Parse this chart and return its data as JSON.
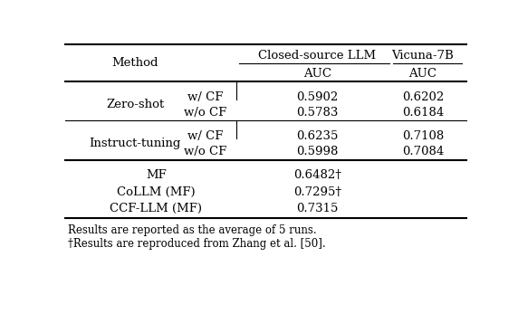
{
  "col_headers": [
    "Method",
    "",
    "Closed-source LLM",
    "Vicuna-7B"
  ],
  "col_subheaders": [
    "",
    "",
    "AUC",
    "AUC"
  ],
  "rows": [
    {
      "group": "Zero-shot",
      "sub": "w/ CF",
      "closed": "0.5902",
      "vicuna": "0.6202"
    },
    {
      "group": "Zero-shot",
      "sub": "w/o CF",
      "closed": "0.5783",
      "vicuna": "0.6184"
    },
    {
      "group": "Instruct-tuning",
      "sub": "w/ CF",
      "closed": "0.6235",
      "vicuna": "0.7108"
    },
    {
      "group": "Instruct-tuning",
      "sub": "w/o CF",
      "closed": "0.5998",
      "vicuna": "0.7084"
    }
  ],
  "bottom_rows": [
    {
      "method": "MF",
      "value": "0.6482†"
    },
    {
      "method": "CoLLM (MF)",
      "value": "0.7295†"
    },
    {
      "method": "CCF-LLM (MF)",
      "value": "0.7315"
    }
  ],
  "footnotes": [
    "Results are reported as the average of 5 runs.",
    "†Results are reproduced from Zhang et al. [50]."
  ],
  "bg_color": "#ffffff",
  "text_color": "#000000"
}
